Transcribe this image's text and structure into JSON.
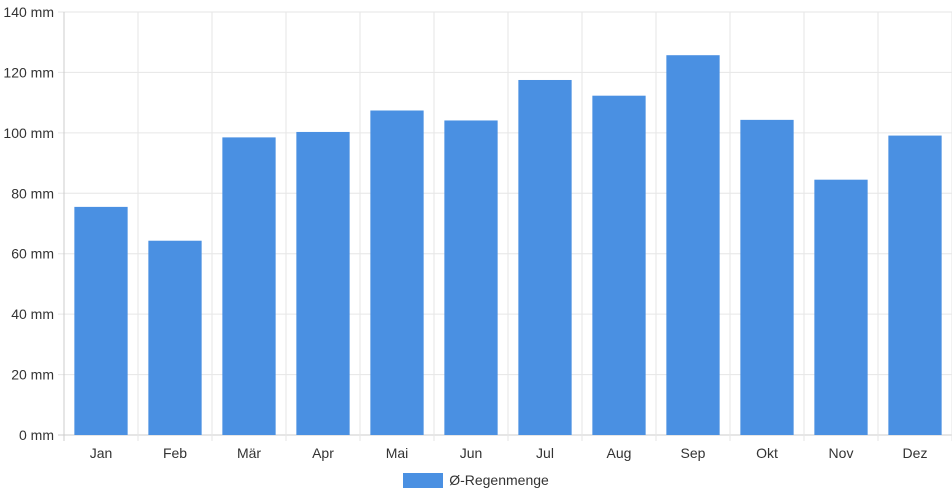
{
  "chart_data": {
    "type": "bar",
    "categories": [
      "Jan",
      "Feb",
      "Mär",
      "Apr",
      "Mai",
      "Jun",
      "Jul",
      "Aug",
      "Sep",
      "Okt",
      "Nov",
      "Dez"
    ],
    "series": [
      {
        "name": "Ø-Regenmenge",
        "values": [
          75.5,
          64.3,
          98.5,
          100.3,
          107.4,
          104.1,
          117.5,
          112.3,
          125.7,
          104.3,
          84.5,
          99.1
        ]
      }
    ],
    "ylim": [
      0,
      140
    ],
    "yticks": [
      "0 mm",
      "20 mm",
      "40 mm",
      "60 mm",
      "80 mm",
      "100 mm",
      "120 mm",
      "140 mm"
    ],
    "grid": true,
    "legend_position": "bottom-center",
    "colors": {
      "bar": "#4a90e2",
      "grid": "#e6e6e6",
      "axis": "#cccccc"
    }
  }
}
